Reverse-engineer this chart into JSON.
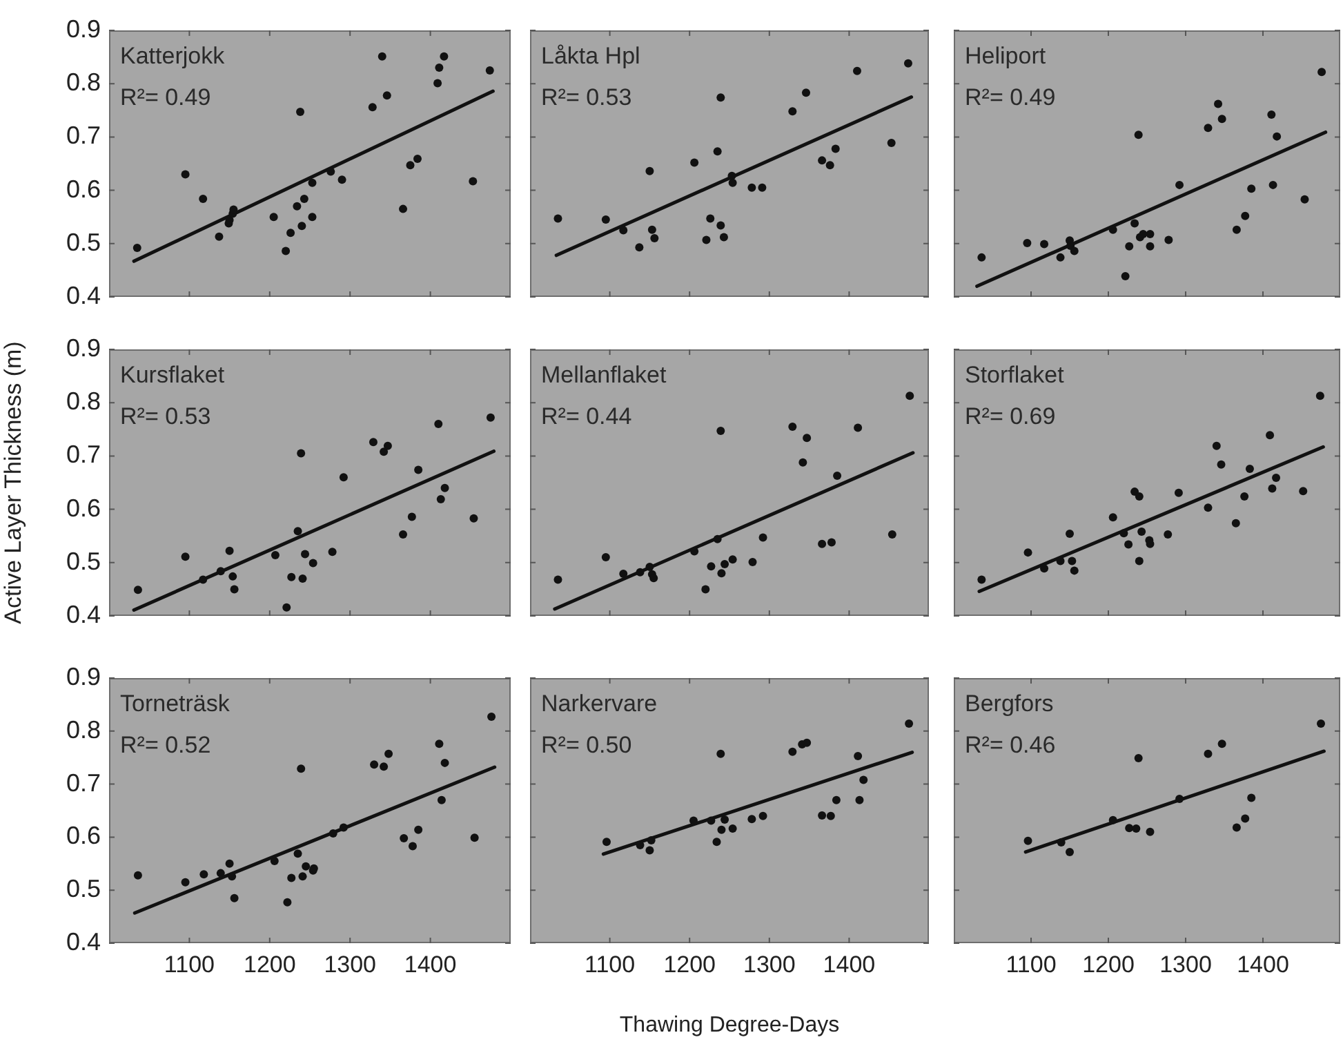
{
  "chart_data": [
    {
      "type": "scatter",
      "title": "Katterjokk",
      "annotations": [
        "R²= 0.49"
      ],
      "xlim": [
        1000,
        1500
      ],
      "ylim": [
        0.4,
        0.9
      ],
      "xticks": [
        1100,
        1200,
        1300,
        1400
      ],
      "yticks": [
        0.4,
        0.5,
        0.6,
        0.7,
        0.8,
        0.9
      ],
      "tick_labels": "y",
      "series": [
        {
          "type": "scatter",
          "marker": "circle",
          "color": "#111111",
          "x": [
            1035,
            1095,
            1117,
            1137,
            1149,
            1150,
            1154,
            1155,
            1205,
            1220,
            1226,
            1234,
            1238,
            1240,
            1243,
            1253,
            1253,
            1276,
            1290,
            1328,
            1340,
            1346,
            1366,
            1375,
            1384,
            1409,
            1411,
            1417,
            1453,
            1474
          ],
          "values": [
            0.492,
            0.63,
            0.584,
            0.513,
            0.538,
            0.544,
            0.556,
            0.564,
            0.55,
            0.486,
            0.52,
            0.57,
            0.747,
            0.533,
            0.584,
            0.55,
            0.614,
            0.635,
            0.62,
            0.756,
            0.851,
            0.778,
            0.565,
            0.647,
            0.659,
            0.801,
            0.83,
            0.851,
            0.617,
            0.825
          ]
        },
        {
          "type": "line",
          "line_style": "solid",
          "color": "#111111",
          "x": [
            1031,
            1478
          ],
          "values": [
            0.467,
            0.786
          ]
        }
      ]
    },
    {
      "type": "scatter",
      "title": "Låkta Hpl",
      "annotations": [
        "R²= 0.53"
      ],
      "xlim": [
        1000,
        1500
      ],
      "ylim": [
        0.4,
        0.9
      ],
      "xticks": [
        1100,
        1200,
        1300,
        1400
      ],
      "yticks": [
        0.4,
        0.5,
        0.6,
        0.7,
        0.8,
        0.9
      ],
      "tick_labels": false,
      "series": [
        {
          "type": "scatter",
          "marker": "circle",
          "color": "#111111",
          "x": [
            1035,
            1095,
            1117,
            1137,
            1153,
            1156,
            1150,
            1206,
            1235,
            1239,
            1221,
            1226,
            1239,
            1243,
            1253,
            1254,
            1278,
            1291,
            1329,
            1346,
            1366,
            1376,
            1383,
            1410,
            1453,
            1474
          ],
          "values": [
            0.547,
            0.545,
            0.525,
            0.493,
            0.526,
            0.51,
            0.636,
            0.652,
            0.673,
            0.774,
            0.507,
            0.547,
            0.534,
            0.512,
            0.627,
            0.614,
            0.605,
            0.605,
            0.748,
            0.783,
            0.656,
            0.647,
            0.678,
            0.824,
            0.689,
            0.838
          ]
        },
        {
          "type": "line",
          "line_style": "solid",
          "color": "#111111",
          "x": [
            1033,
            1478
          ],
          "values": [
            0.478,
            0.775
          ]
        }
      ]
    },
    {
      "type": "scatter",
      "title": "Heliport",
      "annotations": [
        "R²= 0.49"
      ],
      "xlim": [
        1000,
        1500
      ],
      "ylim": [
        0.4,
        0.9
      ],
      "xticks": [
        1100,
        1200,
        1300,
        1400
      ],
      "yticks": [
        0.4,
        0.5,
        0.6,
        0.7,
        0.8,
        0.9
      ],
      "tick_labels": false,
      "series": [
        {
          "type": "scatter",
          "marker": "circle",
          "color": "#111111",
          "x": [
            1036,
            1095,
            1117,
            1138,
            1150,
            1151,
            1156,
            1206,
            1222,
            1227,
            1234,
            1239,
            1241,
            1245,
            1254,
            1254,
            1278,
            1292,
            1329,
            1342,
            1347,
            1366,
            1377,
            1385,
            1411,
            1413,
            1418,
            1454,
            1476
          ],
          "values": [
            0.474,
            0.501,
            0.499,
            0.474,
            0.506,
            0.496,
            0.486,
            0.526,
            0.439,
            0.495,
            0.538,
            0.704,
            0.512,
            0.518,
            0.518,
            0.495,
            0.507,
            0.61,
            0.717,
            0.762,
            0.734,
            0.526,
            0.552,
            0.603,
            0.742,
            0.61,
            0.701,
            0.583,
            0.822
          ]
        },
        {
          "type": "line",
          "line_style": "solid",
          "color": "#111111",
          "x": [
            1030,
            1481
          ],
          "values": [
            0.42,
            0.709
          ]
        }
      ]
    },
    {
      "type": "scatter",
      "title": "Kursflaket",
      "annotations": [
        "R²= 0.53"
      ],
      "ylabel": "Active Layer Thickness (m)",
      "xlim": [
        1000,
        1500
      ],
      "ylim": [
        0.4,
        0.9
      ],
      "xticks": [
        1100,
        1200,
        1300,
        1400
      ],
      "yticks": [
        0.4,
        0.5,
        0.6,
        0.7,
        0.8,
        0.9
      ],
      "tick_labels": "y",
      "series": [
        {
          "type": "scatter",
          "marker": "circle",
          "color": "#111111",
          "x": [
            1036,
            1095,
            1117,
            1139,
            1150,
            1154,
            1156,
            1207,
            1221,
            1227,
            1235,
            1239,
            1241,
            1244,
            1254,
            1278,
            1292,
            1329,
            1342,
            1347,
            1366,
            1377,
            1385,
            1410,
            1413,
            1418,
            1454,
            1475
          ],
          "values": [
            0.449,
            0.511,
            0.468,
            0.484,
            0.522,
            0.474,
            0.45,
            0.514,
            0.416,
            0.473,
            0.559,
            0.705,
            0.47,
            0.516,
            0.499,
            0.52,
            0.66,
            0.726,
            0.708,
            0.719,
            0.553,
            0.586,
            0.674,
            0.76,
            0.619,
            0.64,
            0.583,
            0.772
          ]
        },
        {
          "type": "line",
          "line_style": "solid",
          "color": "#111111",
          "x": [
            1031,
            1479
          ],
          "values": [
            0.411,
            0.709
          ]
        }
      ]
    },
    {
      "type": "scatter",
      "title": "Mellanflaket",
      "annotations": [
        "R²= 0.44"
      ],
      "xlim": [
        1000,
        1500
      ],
      "ylim": [
        0.4,
        0.9
      ],
      "xticks": [
        1100,
        1200,
        1300,
        1400
      ],
      "yticks": [
        0.4,
        0.5,
        0.6,
        0.7,
        0.8,
        0.9
      ],
      "tick_labels": false,
      "series": [
        {
          "type": "scatter",
          "marker": "circle",
          "color": "#111111",
          "x": [
            1035,
            1095,
            1117,
            1138,
            1150,
            1153,
            1155,
            1206,
            1220,
            1227,
            1235,
            1239,
            1240,
            1244,
            1254,
            1279,
            1292,
            1329,
            1342,
            1347,
            1366,
            1378,
            1385,
            1411,
            1454,
            1476
          ],
          "values": [
            0.468,
            0.51,
            0.479,
            0.482,
            0.492,
            0.478,
            0.471,
            0.521,
            0.45,
            0.493,
            0.544,
            0.747,
            0.48,
            0.497,
            0.506,
            0.501,
            0.547,
            0.755,
            0.688,
            0.734,
            0.535,
            0.538,
            0.663,
            0.753,
            0.553,
            0.813
          ]
        },
        {
          "type": "line",
          "line_style": "solid",
          "color": "#111111",
          "x": [
            1031,
            1480
          ],
          "values": [
            0.413,
            0.706
          ]
        }
      ]
    },
    {
      "type": "scatter",
      "title": "Storflaket",
      "annotations": [
        "R²= 0.69"
      ],
      "xlim": [
        1000,
        1500
      ],
      "ylim": [
        0.4,
        0.9
      ],
      "xticks": [
        1100,
        1200,
        1300,
        1400
      ],
      "yticks": [
        0.4,
        0.5,
        0.6,
        0.7,
        0.8,
        0.9
      ],
      "tick_labels": false,
      "series": [
        {
          "type": "scatter",
          "marker": "circle",
          "color": "#111111",
          "x": [
            1036,
            1096,
            1117,
            1138,
            1150,
            1153,
            1156,
            1206,
            1220,
            1226,
            1234,
            1240,
            1240,
            1243,
            1253,
            1254,
            1277,
            1291,
            1329,
            1340,
            1346,
            1365,
            1376,
            1383,
            1409,
            1412,
            1417,
            1452,
            1474
          ],
          "values": [
            0.468,
            0.519,
            0.489,
            0.503,
            0.554,
            0.503,
            0.485,
            0.585,
            0.555,
            0.534,
            0.633,
            0.624,
            0.503,
            0.558,
            0.542,
            0.535,
            0.553,
            0.631,
            0.603,
            0.719,
            0.684,
            0.574,
            0.624,
            0.676,
            0.739,
            0.639,
            0.659,
            0.634,
            0.813
          ]
        },
        {
          "type": "line",
          "line_style": "solid",
          "color": "#111111",
          "x": [
            1033,
            1478
          ],
          "values": [
            0.446,
            0.717
          ]
        }
      ]
    },
    {
      "type": "scatter",
      "title": "Torneträsk",
      "annotations": [
        "R²= 0.52"
      ],
      "xlim": [
        1000,
        1500
      ],
      "ylim": [
        0.4,
        0.9
      ],
      "xticks": [
        1100,
        1200,
        1300,
        1400
      ],
      "yticks": [
        0.4,
        0.5,
        0.6,
        0.7,
        0.8,
        0.9
      ],
      "series": [
        {
          "type": "scatter",
          "marker": "circle",
          "color": "#111111",
          "x": [
            1036,
            1095,
            1118,
            1139,
            1150,
            1153,
            1156,
            1206,
            1222,
            1227,
            1235,
            1239,
            1241,
            1245,
            1254,
            1255,
            1279,
            1292,
            1330,
            1342,
            1348,
            1367,
            1378,
            1385,
            1411,
            1414,
            1418,
            1455,
            1476
          ],
          "values": [
            0.528,
            0.515,
            0.53,
            0.532,
            0.55,
            0.526,
            0.485,
            0.555,
            0.477,
            0.523,
            0.569,
            0.729,
            0.526,
            0.545,
            0.537,
            0.541,
            0.607,
            0.618,
            0.737,
            0.733,
            0.757,
            0.598,
            0.583,
            0.614,
            0.776,
            0.67,
            0.74,
            0.599,
            0.827
          ]
        },
        {
          "type": "line",
          "line_style": "solid",
          "color": "#111111",
          "x": [
            1032,
            1480
          ],
          "values": [
            0.457,
            0.732
          ]
        }
      ]
    },
    {
      "type": "scatter",
      "title": "Narkervare",
      "annotations": [
        "R²= 0.50"
      ],
      "xlabel": "Thawing Degree-Days",
      "xlim": [
        1000,
        1500
      ],
      "ylim": [
        0.4,
        0.9
      ],
      "xticks": [
        1100,
        1200,
        1300,
        1400
      ],
      "yticks": [
        0.4,
        0.5,
        0.6,
        0.7,
        0.8,
        0.9
      ],
      "tick_labels": "x",
      "series": [
        {
          "type": "scatter",
          "marker": "circle",
          "color": "#111111",
          "x": [
            1096,
            1138,
            1150,
            1152,
            1205,
            1227,
            1234,
            1240,
            1239,
            1244,
            1254,
            1278,
            1292,
            1329,
            1341,
            1347,
            1366,
            1377,
            1384,
            1411,
            1413,
            1418,
            1475
          ],
          "values": [
            0.591,
            0.585,
            0.575,
            0.594,
            0.631,
            0.631,
            0.591,
            0.614,
            0.757,
            0.633,
            0.616,
            0.634,
            0.64,
            0.761,
            0.775,
            0.778,
            0.641,
            0.64,
            0.67,
            0.753,
            0.67,
            0.708,
            0.814
          ]
        },
        {
          "type": "line",
          "line_style": "solid",
          "color": "#111111",
          "x": [
            1092,
            1479
          ],
          "values": [
            0.568,
            0.76
          ]
        }
      ]
    },
    {
      "type": "scatter",
      "title": "Bergfors",
      "annotations": [
        "R²= 0.46"
      ],
      "xlim": [
        1000,
        1500
      ],
      "ylim": [
        0.4,
        0.9
      ],
      "xticks": [
        1100,
        1200,
        1300,
        1400
      ],
      "yticks": [
        0.4,
        0.5,
        0.6,
        0.7,
        0.8,
        0.9
      ],
      "tick_labels": "x",
      "series": [
        {
          "type": "scatter",
          "marker": "circle",
          "color": "#111111",
          "x": [
            1096,
            1139,
            1150,
            1206,
            1227,
            1236,
            1239,
            1254,
            1292,
            1329,
            1347,
            1366,
            1377,
            1385,
            1475
          ],
          "values": [
            0.593,
            0.59,
            0.572,
            0.632,
            0.617,
            0.616,
            0.749,
            0.61,
            0.672,
            0.757,
            0.776,
            0.618,
            0.635,
            0.674,
            0.814
          ]
        },
        {
          "type": "line",
          "line_style": "solid",
          "color": "#111111",
          "x": [
            1093,
            1479
          ],
          "values": [
            0.572,
            0.762
          ]
        }
      ]
    }
  ]
}
